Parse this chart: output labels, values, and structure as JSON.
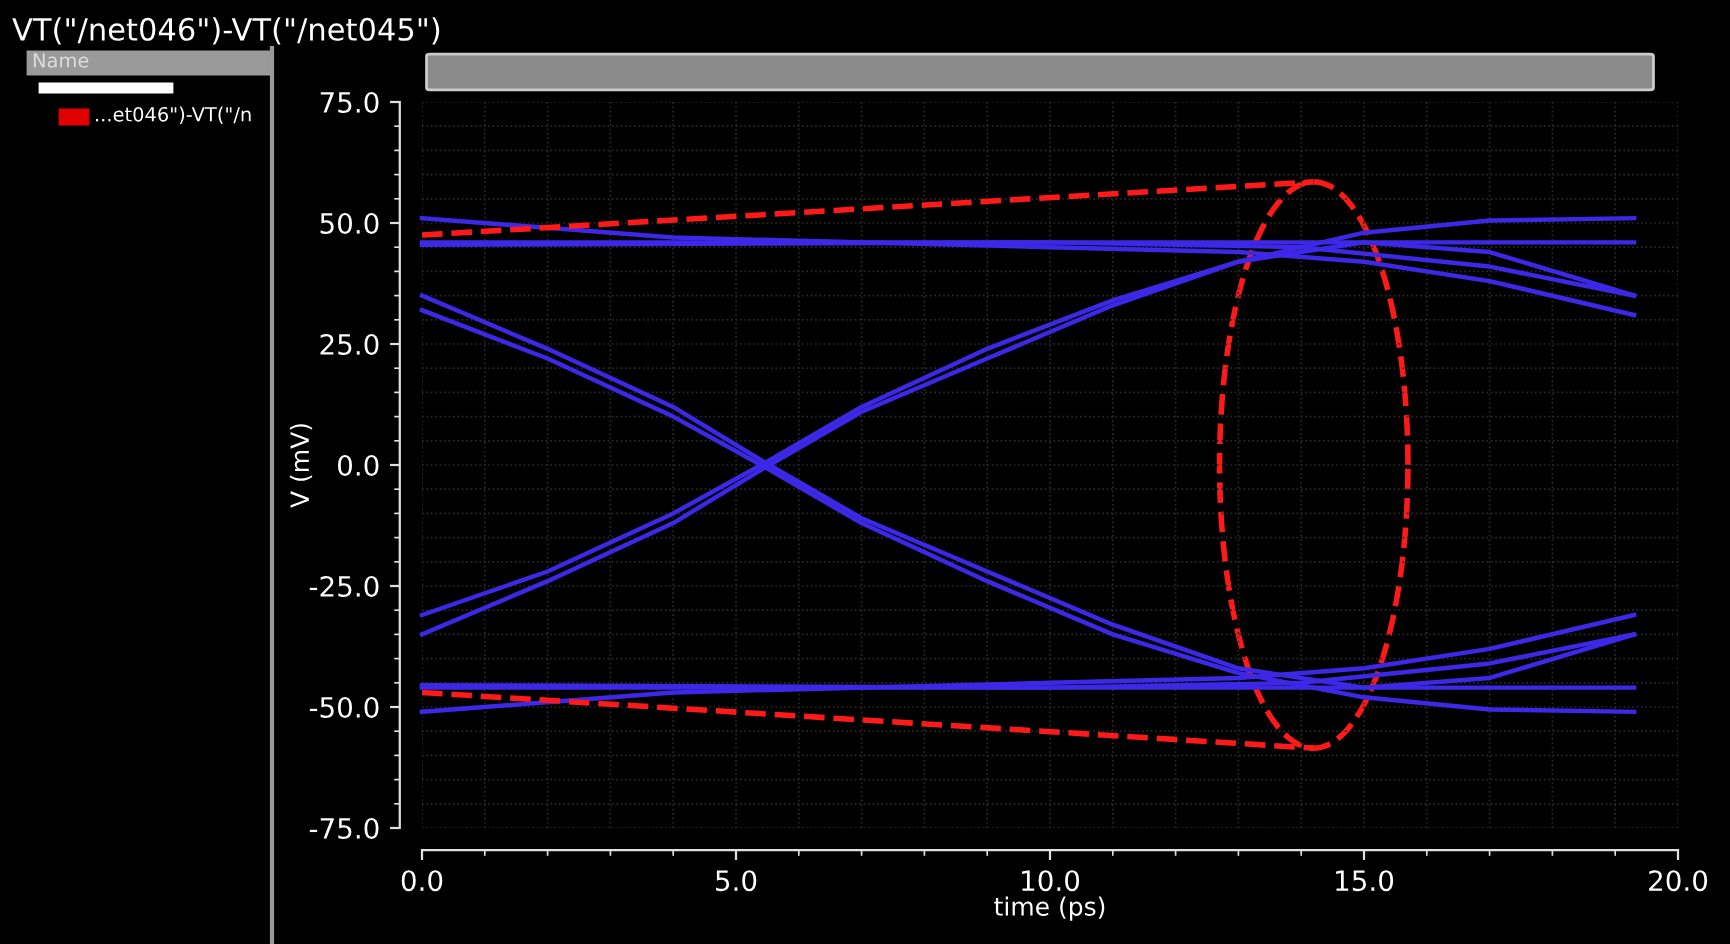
{
  "chart_data": {
    "type": "line",
    "title": "VT(\"/net046\")-VT(\"/net045\")",
    "xlabel": "time (ps)",
    "ylabel": "V (mV)",
    "annotations": [
      "Name",
      "...et046\")-VT(\"/n"
    ],
    "xlim": [
      0,
      20
    ],
    "ylim": [
      -75,
      75
    ],
    "xticks": [
      {
        "value": 0,
        "label": "0.0"
      },
      {
        "value": 5,
        "label": "5.0"
      },
      {
        "value": 10,
        "label": "10.0"
      },
      {
        "value": 15,
        "label": "15.0"
      },
      {
        "value": 20,
        "label": "20.0"
      }
    ],
    "yticks": [
      {
        "value": -75,
        "label": "-75.0"
      },
      {
        "value": -50,
        "label": "-50.0"
      },
      {
        "value": -25,
        "label": "-25.0"
      },
      {
        "value": 0,
        "label": "0.0"
      },
      {
        "value": 25,
        "label": "25.0"
      },
      {
        "value": 50,
        "label": "50.0"
      },
      {
        "value": 75,
        "label": "75.0"
      }
    ],
    "grid": true,
    "legend": false,
    "series": [
      {
        "color": "#3c28e6",
        "x": [
          0,
          2,
          4,
          5.4,
          7,
          9,
          11,
          13,
          15,
          17,
          19.3
        ],
        "values": [
          32,
          22,
          10,
          0,
          -12,
          -24,
          -35,
          -43,
          -48,
          -50.5,
          -51
        ]
      },
      {
        "color": "#3c28e6",
        "x": [
          0,
          2,
          4,
          5.4,
          7,
          9,
          11,
          13,
          15,
          17,
          19.3
        ],
        "values": [
          35,
          24,
          12,
          1,
          -11,
          -22,
          -33,
          -42,
          -46,
          -44,
          -35
        ]
      },
      {
        "color": "#3c28e6",
        "x": [
          0,
          2,
          4,
          5.4,
          7,
          9,
          11,
          13,
          15,
          17,
          19.3
        ],
        "values": [
          -31,
          -22,
          -10,
          0,
          12,
          24,
          34,
          42,
          48,
          50.5,
          51
        ]
      },
      {
        "color": "#3c28e6",
        "x": [
          0,
          2,
          4,
          5.4,
          7,
          9,
          11,
          13,
          15,
          17,
          19.3
        ],
        "values": [
          -35,
          -24,
          -12,
          -1,
          11,
          22,
          33,
          42,
          46,
          44,
          35
        ]
      },
      {
        "color": "#3c28e6",
        "x": [
          0,
          4,
          10,
          13,
          15,
          17,
          19.3
        ],
        "values": [
          51,
          47,
          45,
          44,
          42,
          38,
          31
        ]
      },
      {
        "color": "#3c28e6",
        "x": [
          0,
          10,
          14,
          17,
          19.3
        ],
        "values": [
          45.5,
          46,
          45,
          41,
          35
        ]
      },
      {
        "color": "#3c28e6",
        "x": [
          0,
          19.3
        ],
        "values": [
          46,
          46
        ]
      },
      {
        "color": "#3c28e6",
        "x": [
          0,
          4,
          10,
          13,
          15,
          17,
          19.3
        ],
        "values": [
          -51,
          -47,
          -45,
          -44,
          -42,
          -38,
          -31
        ]
      },
      {
        "color": "#3c28e6",
        "x": [
          0,
          10,
          14,
          17,
          19.3
        ],
        "values": [
          -45.5,
          -46,
          -45,
          -41,
          -35
        ]
      },
      {
        "color": "#3c28e6",
        "x": [
          0,
          19.3
        ],
        "values": [
          -46,
          -46
        ]
      },
      {
        "color": "#ff1a1a",
        "line_style": "dashed",
        "x": [
          0,
          14.2
        ],
        "values": [
          47.5,
          58.5
        ]
      },
      {
        "color": "#ff1a1a",
        "line_style": "dashed",
        "x": [
          0,
          14.2
        ],
        "values": [
          -47,
          -58.5
        ]
      }
    ]
  }
}
